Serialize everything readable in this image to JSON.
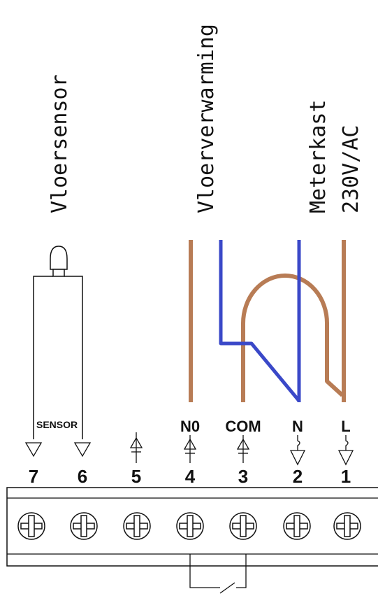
{
  "labels": {
    "vloersensor": "Vloersensor",
    "vloerverwarming": "Vloerverwarming",
    "meterkast_line1": "Meterkast",
    "meterkast_line2": "230V/AC",
    "sensor": "SENSOR"
  },
  "terminals": [
    {
      "number": "7",
      "label": ""
    },
    {
      "number": "6",
      "label": ""
    },
    {
      "number": "5",
      "label": ""
    },
    {
      "number": "4",
      "label": "N0"
    },
    {
      "number": "3",
      "label": "COM"
    },
    {
      "number": "2",
      "label": "N"
    },
    {
      "number": "1",
      "label": "L"
    }
  ],
  "wire_colors": {
    "brown": "#b87c55",
    "blue": "#3a48c8",
    "black": "#111111"
  }
}
